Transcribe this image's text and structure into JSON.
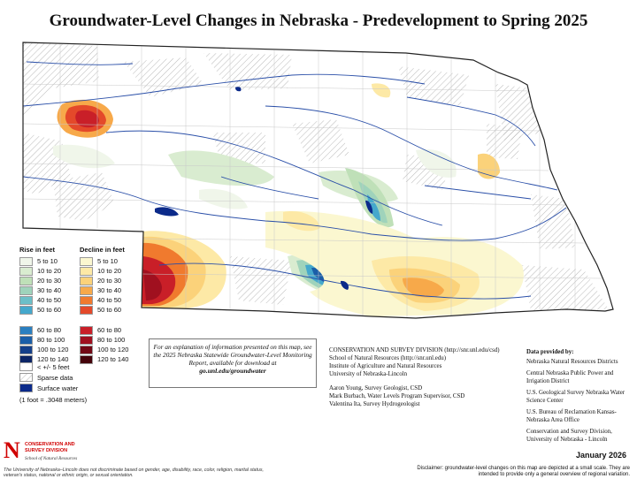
{
  "title": "Groundwater-Level Changes in Nebraska - Predevelopment to Spring 2025",
  "legend": {
    "rise_heading": "Rise in feet",
    "decline_heading": "Decline in feet",
    "rise": [
      {
        "label": "5 to 10",
        "color": "#f0f6ea"
      },
      {
        "label": "10 to 20",
        "color": "#d9ecd0"
      },
      {
        "label": "20 to 30",
        "color": "#bfe0b8"
      },
      {
        "label": "30 to 40",
        "color": "#9fd3bb"
      },
      {
        "label": "40 to 50",
        "color": "#6cbfc8"
      },
      {
        "label": "50 to 60",
        "color": "#45a8cc"
      },
      {
        "label": "60 to 80",
        "color": "#2a7fc0"
      },
      {
        "label": "80 to 100",
        "color": "#1a5ea8"
      },
      {
        "label": "100 to 120",
        "color": "#143f8a"
      },
      {
        "label": "120 to 140",
        "color": "#0c2566"
      }
    ],
    "decline": [
      {
        "label": "5 to 10",
        "color": "#fbf7d0"
      },
      {
        "label": "10 to 20",
        "color": "#fde9a6"
      },
      {
        "label": "20 to 30",
        "color": "#fbd27a"
      },
      {
        "label": "30 to 40",
        "color": "#f7a94a"
      },
      {
        "label": "40 to 50",
        "color": "#f07a2e"
      },
      {
        "label": "50 to 60",
        "color": "#e4492a"
      },
      {
        "label": "60 to 80",
        "color": "#c91f28"
      },
      {
        "label": "80 to 100",
        "color": "#a0101f"
      },
      {
        "label": "100 to 120",
        "color": "#720815"
      },
      {
        "label": "120 to 140",
        "color": "#45030b"
      }
    ],
    "small_change": "< +/- 5 feet",
    "sparse_data": "Sparse data",
    "surface_water": "Surface water",
    "surface_water_color": "#0b2a8a",
    "conversion": "(1 foot = .3048 meters)"
  },
  "info_box": {
    "text": "For an explanation of information presented on this map, see the 2025 Nebraska Statewide Groundwater-Level Monitoring Report, available for download at",
    "url": "go.unl.edu/groundwater"
  },
  "csd": {
    "lines": [
      "CONSERVATION AND SURVEY DIVISION (http://snr.unl.edu/csd)",
      "School of Natural Resources (http://snr.unl.edu)",
      "Institute of Agriculture and Natural Resources",
      "University of Nebraska-Lincoln"
    ],
    "people": [
      "Aaron Young, Survey Geologist, CSD",
      "Mark Burbach, Water Levels Program Supervisor, CSD",
      "Valentina Ita, Survey Hydrogeologist"
    ]
  },
  "provided": {
    "heading": "Data provided by:",
    "items": [
      "Nebraska Natural Resources Districts",
      "Central Nebraska Public Power and Irrigation District",
      "U.S. Geological Survey Nebraska Water Science Center",
      "U.S. Bureau of Reclamation Kansas-Nebraska Area Office",
      "Conservation and Survey Division, University of Nebraska - Lincoln"
    ]
  },
  "logo": {
    "letter": "N",
    "line1": "CONSERVATION AND",
    "line2": "SURVEY DIVISION",
    "line3": "School of Natural Resources"
  },
  "nondiscrimination": "The University of Nebraska–Lincoln does not discriminate based on gender, age, disability, race, color, religion, marital status, veteran's status, national or ethnic origin, or sexual orientation.",
  "date": "January 2026",
  "disclaimer": "Disclaimer: groundwater-level changes on this map are depicted at a small scale. They are intended to provide only a general overview of regional variation."
}
